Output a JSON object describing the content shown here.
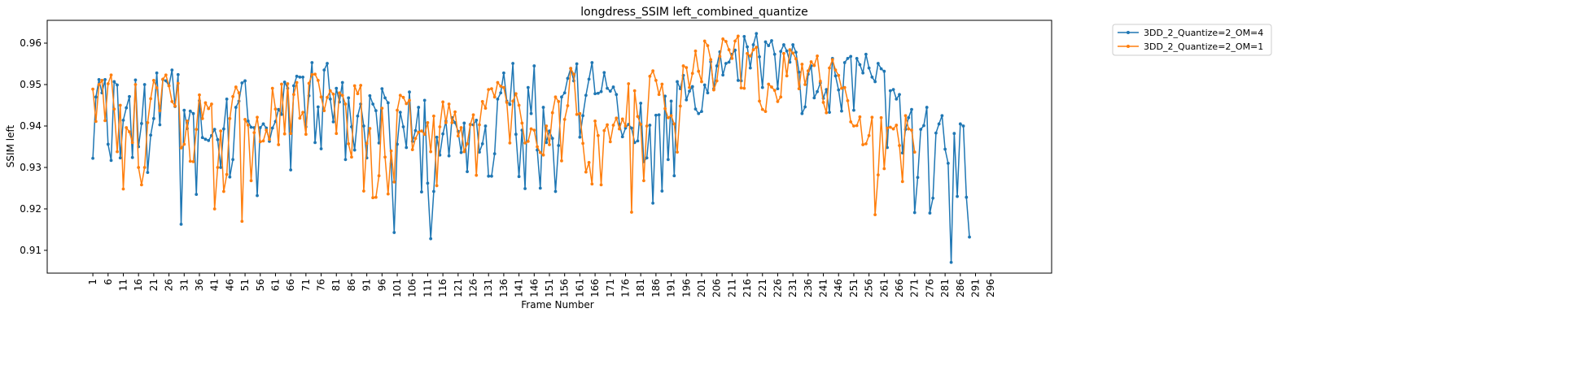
{
  "chart_data": {
    "type": "line",
    "title": "longdress_SSIM left_combined_quantize",
    "xlabel": "Frame Number",
    "ylabel": "SSIM left",
    "xlim": [
      -14,
      316
    ],
    "ylim": [
      0.9045,
      0.9655
    ],
    "x_tick_labels": [
      "1",
      "6",
      "11",
      "16",
      "21",
      "26",
      "31",
      "36",
      "41",
      "46",
      "51",
      "56",
      "61",
      "66",
      "71",
      "76",
      "81",
      "86",
      "91",
      "96",
      "101",
      "106",
      "111",
      "116",
      "121",
      "126",
      "131",
      "136",
      "141",
      "146",
      "151",
      "156",
      "161",
      "166",
      "171",
      "176",
      "181",
      "186",
      "191",
      "196",
      "201",
      "206",
      "211",
      "216",
      "221",
      "226",
      "231",
      "236",
      "241",
      "246",
      "251",
      "256",
      "261",
      "266",
      "271",
      "276",
      "281",
      "286",
      "291",
      "296"
    ],
    "y_ticks": [
      0.91,
      0.92,
      0.93,
      0.94,
      0.95,
      0.96
    ],
    "y_tick_labels": [
      "0.91",
      "0.92",
      "0.93",
      "0.94",
      "0.95",
      "0.96"
    ],
    "grid": false,
    "legend_position": "outside-top-right",
    "x_start": 1,
    "series": [
      {
        "name": "3DD_2_Quantize=2_OM=4",
        "color": "#1f77b4",
        "values": [
          0.9322,
          0.947,
          0.9512,
          0.948,
          0.9512,
          0.9356,
          0.9317,
          0.9507,
          0.9499,
          0.9323,
          0.9414,
          0.9444,
          0.9471,
          0.9324,
          0.9511,
          0.935,
          0.9406,
          0.95,
          0.9288,
          0.9378,
          0.9418,
          0.9528,
          0.9403,
          0.9512,
          0.9509,
          0.9497,
          0.9535,
          0.9447,
          0.9524,
          0.9163,
          0.9438,
          0.9394,
          0.9436,
          0.943,
          0.9235,
          0.9461,
          0.9372,
          0.9368,
          0.9365,
          0.9377,
          0.9392,
          0.9367,
          0.93,
          0.9393,
          0.9465,
          0.9277,
          0.9319,
          0.9445,
          0.946,
          0.9504,
          0.9509,
          0.9412,
          0.9397,
          0.9396,
          0.9232,
          0.9396,
          0.9405,
          0.9395,
          0.9363,
          0.9395,
          0.9411,
          0.944,
          0.9428,
          0.9506,
          0.9491,
          0.9294,
          0.9497,
          0.952,
          0.9518,
          0.9518,
          0.9398,
          0.9473,
          0.9553,
          0.936,
          0.9446,
          0.9345,
          0.9535,
          0.9551,
          0.9465,
          0.941,
          0.9491,
          0.9458,
          0.9505,
          0.9319,
          0.9468,
          0.9398,
          0.9342,
          0.9424,
          0.9453,
          0.94,
          0.9323,
          0.9473,
          0.9453,
          0.9437,
          0.9359,
          0.949,
          0.9468,
          0.9456,
          0.9309,
          0.9143,
          0.9356,
          0.9433,
          0.9398,
          0.9348,
          0.9482,
          0.9363,
          0.9389,
          0.9445,
          0.9241,
          0.9462,
          0.9262,
          0.9128,
          0.9242,
          0.9373,
          0.933,
          0.9381,
          0.9412,
          0.9328,
          0.942,
          0.9408,
          0.9387,
          0.9336,
          0.9407,
          0.929,
          0.9404,
          0.9403,
          0.9414,
          0.9337,
          0.9357,
          0.94,
          0.9279,
          0.9279,
          0.9333,
          0.9465,
          0.948,
          0.9528,
          0.946,
          0.9452,
          0.9551,
          0.938,
          0.9278,
          0.939,
          0.9249,
          0.9493,
          0.943,
          0.9545,
          0.9342,
          0.925,
          0.9445,
          0.936,
          0.9388,
          0.937,
          0.9242,
          0.9353,
          0.947,
          0.948,
          0.9515,
          0.9539,
          0.9509,
          0.955,
          0.9373,
          0.9425,
          0.9474,
          0.9513,
          0.9553,
          0.9478,
          0.9479,
          0.9483,
          0.9529,
          0.9491,
          0.9484,
          0.9494,
          0.9476,
          0.9404,
          0.9374,
          0.9395,
          0.9404,
          0.9395,
          0.936,
          0.9364,
          0.9455,
          0.9314,
          0.9323,
          0.9402,
          0.9214,
          0.9426,
          0.9427,
          0.9243,
          0.9472,
          0.9319,
          0.946,
          0.928,
          0.9507,
          0.949,
          0.9522,
          0.9463,
          0.9484,
          0.9495,
          0.9441,
          0.943,
          0.9435,
          0.9499,
          0.948,
          0.9555,
          0.949,
          0.9545,
          0.9579,
          0.9523,
          0.9551,
          0.9554,
          0.9573,
          0.9583,
          0.951,
          0.9509,
          0.9616,
          0.9591,
          0.954,
          0.9596,
          0.9623,
          0.9567,
          0.9493,
          0.9603,
          0.9594,
          0.9606,
          0.9573,
          0.949,
          0.958,
          0.9596,
          0.9581,
          0.9554,
          0.9596,
          0.9578,
          0.953,
          0.943,
          0.9446,
          0.9525,
          0.9545,
          0.9468,
          0.9483,
          0.9504,
          0.9467,
          0.9488,
          0.9433,
          0.9563,
          0.9521,
          0.9487,
          0.9436,
          0.9553,
          0.9563,
          0.9568,
          0.9438,
          0.9563,
          0.9548,
          0.9528,
          0.9573,
          0.954,
          0.9518,
          0.9507,
          0.9551,
          0.9538,
          0.9532,
          0.9348,
          0.9485,
          0.9488,
          0.9465,
          0.9476,
          0.9335,
          0.9392,
          0.942,
          0.944,
          0.9191,
          0.9276,
          0.9392,
          0.9401,
          0.9445,
          0.919,
          0.9226,
          0.9383,
          0.9405,
          0.9425,
          0.9344,
          0.931,
          0.9071,
          0.9382,
          0.923,
          0.9405,
          0.94,
          0.9228,
          0.9132
        ]
      },
      {
        "name": "3DD_2_Quantize=2_OM=1",
        "color": "#ff7f0e",
        "values": [
          0.9489,
          0.9411,
          0.95,
          0.951,
          0.9413,
          0.9502,
          0.9523,
          0.9441,
          0.9338,
          0.945,
          0.9248,
          0.9396,
          0.9386,
          0.936,
          0.95,
          0.93,
          0.9258,
          0.93,
          0.9408,
          0.9466,
          0.951,
          0.9492,
          0.9437,
          0.9513,
          0.9523,
          0.9497,
          0.9459,
          0.9448,
          0.9503,
          0.9347,
          0.9356,
          0.9412,
          0.9315,
          0.9314,
          0.9392,
          0.9475,
          0.9418,
          0.9456,
          0.9442,
          0.9453,
          0.92,
          0.93,
          0.9388,
          0.9242,
          0.9283,
          0.9418,
          0.9471,
          0.9494,
          0.948,
          0.917,
          0.9416,
          0.9402,
          0.9268,
          0.9384,
          0.9421,
          0.9362,
          0.9364,
          0.939,
          0.9368,
          0.9491,
          0.9441,
          0.9355,
          0.9501,
          0.9381,
          0.9502,
          0.9382,
          0.9476,
          0.9505,
          0.9419,
          0.9433,
          0.938,
          0.9503,
          0.9524,
          0.9525,
          0.951,
          0.947,
          0.9437,
          0.9469,
          0.9485,
          0.9477,
          0.9382,
          0.948,
          0.9474,
          0.9453,
          0.9357,
          0.9325,
          0.9497,
          0.9478,
          0.9498,
          0.9243,
          0.9358,
          0.9394,
          0.9227,
          0.9228,
          0.928,
          0.9443,
          0.9325,
          0.9236,
          0.934,
          0.9265,
          0.9438,
          0.9474,
          0.9469,
          0.9454,
          0.9462,
          0.9343,
          0.937,
          0.9385,
          0.9388,
          0.938,
          0.9408,
          0.9338,
          0.9424,
          0.9256,
          0.9398,
          0.9458,
          0.9408,
          0.9453,
          0.9408,
          0.9434,
          0.9376,
          0.9396,
          0.9338,
          0.9357,
          0.9403,
          0.9427,
          0.9281,
          0.9403,
          0.9459,
          0.9443,
          0.9488,
          0.949,
          0.947,
          0.9505,
          0.9496,
          0.9493,
          0.9457,
          0.9359,
          0.946,
          0.9478,
          0.945,
          0.9407,
          0.9359,
          0.9363,
          0.9393,
          0.939,
          0.935,
          0.9336,
          0.933,
          0.94,
          0.9355,
          0.9432,
          0.947,
          0.9459,
          0.9316,
          0.9416,
          0.9449,
          0.9539,
          0.9525,
          0.9428,
          0.943,
          0.9358,
          0.9289,
          0.9312,
          0.926,
          0.9412,
          0.9377,
          0.9258,
          0.9389,
          0.9403,
          0.9362,
          0.9402,
          0.9419,
          0.9393,
          0.9417,
          0.94,
          0.9502,
          0.9192,
          0.9485,
          0.9423,
          0.9404,
          0.9268,
          0.94,
          0.952,
          0.9533,
          0.951,
          0.9476,
          0.9501,
          0.9442,
          0.942,
          0.9425,
          0.9405,
          0.9337,
          0.9448,
          0.9545,
          0.9541,
          0.9493,
          0.9527,
          0.9581,
          0.9532,
          0.9507,
          0.9605,
          0.9594,
          0.956,
          0.9487,
          0.9509,
          0.9568,
          0.961,
          0.9604,
          0.9584,
          0.9563,
          0.9605,
          0.9617,
          0.9492,
          0.9491,
          0.9575,
          0.9569,
          0.9584,
          0.959,
          0.946,
          0.944,
          0.9435,
          0.9501,
          0.9494,
          0.9486,
          0.9459,
          0.947,
          0.9575,
          0.9521,
          0.9584,
          0.9576,
          0.9562,
          0.949,
          0.9549,
          0.95,
          0.9533,
          0.9555,
          0.9546,
          0.9569,
          0.9508,
          0.9457,
          0.9432,
          0.954,
          0.956,
          0.9535,
          0.9522,
          0.9491,
          0.9493,
          0.9461,
          0.941,
          0.94,
          0.9401,
          0.9422,
          0.9355,
          0.9357,
          0.9377,
          0.9421,
          0.9186,
          0.9282,
          0.942,
          0.9297,
          0.9395,
          0.9397,
          0.9393,
          0.9402,
          0.9353,
          0.9266,
          0.9425,
          0.9393,
          0.939,
          0.9337
        ]
      }
    ]
  }
}
